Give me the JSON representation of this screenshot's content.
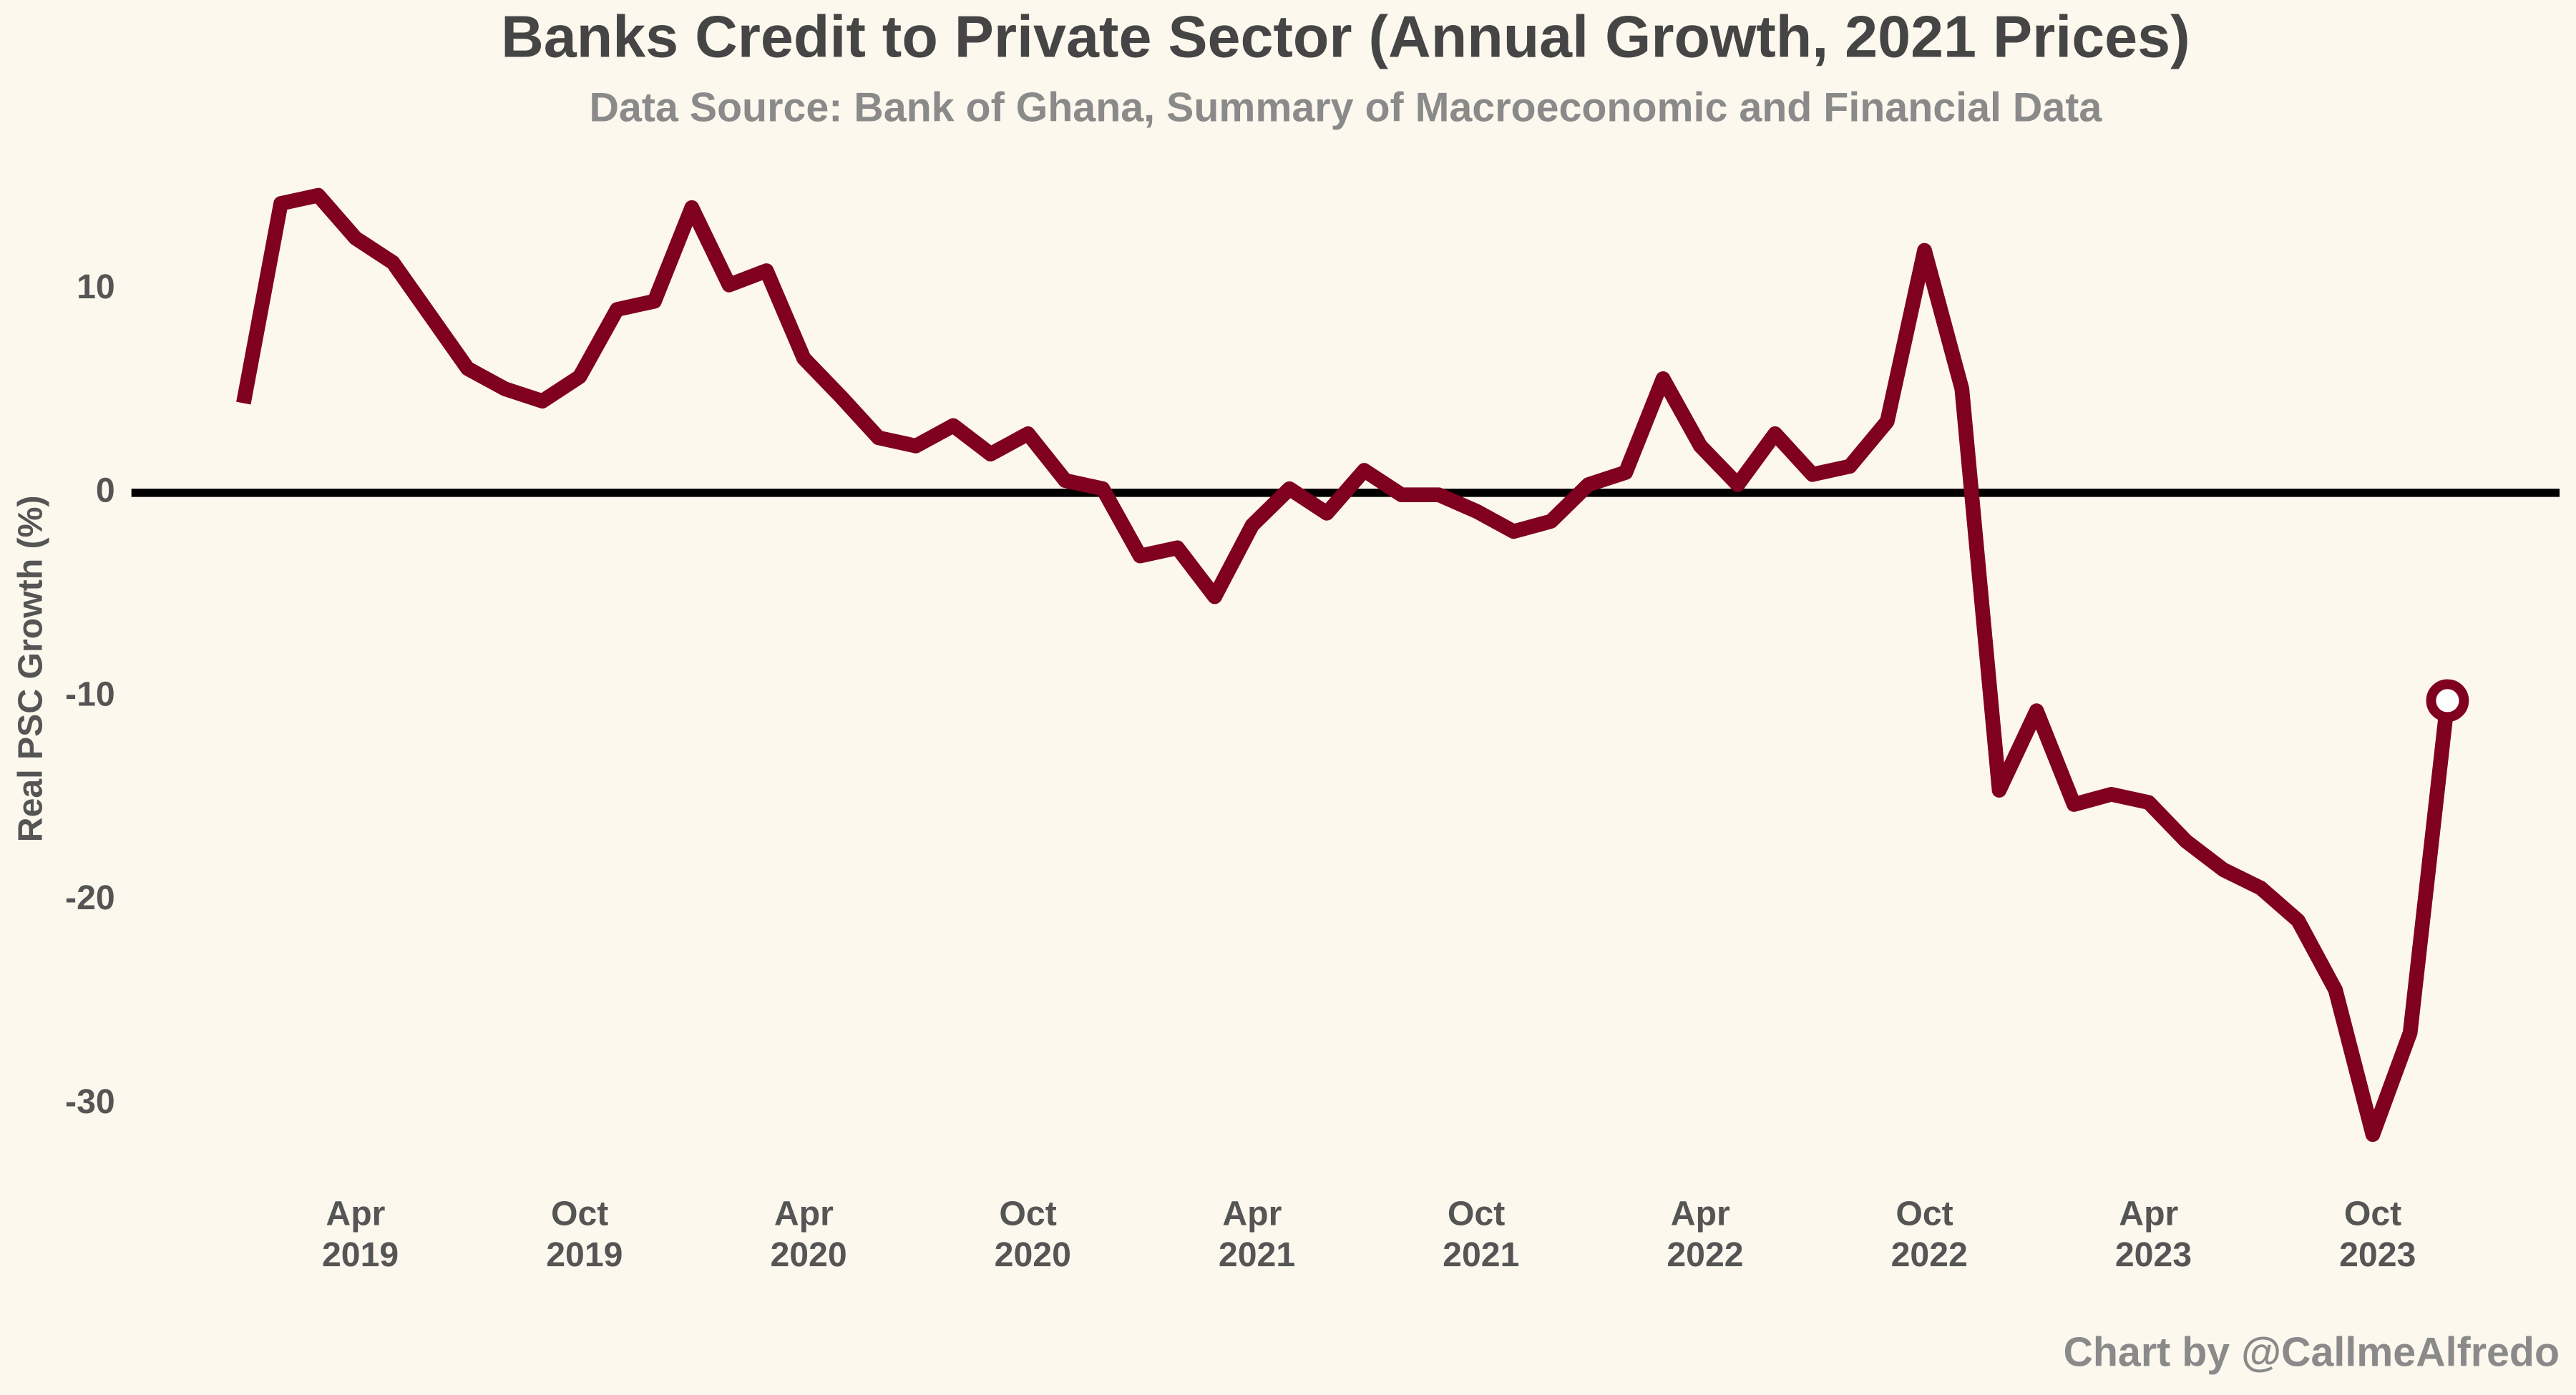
{
  "chart_data": {
    "type": "line",
    "title": "Banks Credit to Private Sector (Annual Growth, 2021 Prices)",
    "subtitle": "Data Source: Bank of Ghana, Summary of Macroeconomic and Financial Data",
    "y_label": "Real PSC Growth (%)",
    "credit": "Chart by @CallmeAlfredo",
    "x": [
      "2019-01",
      "2019-02",
      "2019-03",
      "2019-04",
      "2019-05",
      "2019-06",
      "2019-07",
      "2019-08",
      "2019-09",
      "2019-10",
      "2019-11",
      "2019-12",
      "2020-01",
      "2020-02",
      "2020-03",
      "2020-04",
      "2020-05",
      "2020-06",
      "2020-07",
      "2020-08",
      "2020-09",
      "2020-10",
      "2020-11",
      "2020-12",
      "2021-01",
      "2021-02",
      "2021-03",
      "2021-04",
      "2021-05",
      "2021-06",
      "2021-07",
      "2021-08",
      "2021-09",
      "2021-10",
      "2021-11",
      "2021-12",
      "2022-01",
      "2022-02",
      "2022-03",
      "2022-04",
      "2022-05",
      "2022-06",
      "2022-07",
      "2022-08",
      "2022-09",
      "2022-10",
      "2022-11",
      "2022-12",
      "2023-01",
      "2023-02",
      "2023-03",
      "2023-04",
      "2023-05",
      "2023-06",
      "2023-07",
      "2023-08",
      "2023-09",
      "2023-10",
      "2023-11",
      "2023-12"
    ],
    "series": [
      {
        "name": "Real PSC Growth",
        "color": "#800020",
        "values": [
          4.4,
          14.2,
          14.6,
          12.5,
          11.3,
          8.7,
          6.1,
          5.1,
          4.5,
          5.7,
          9.0,
          9.4,
          14.0,
          10.2,
          10.9,
          6.6,
          4.7,
          2.7,
          2.3,
          3.3,
          1.9,
          2.9,
          0.6,
          0.2,
          -3.1,
          -2.7,
          -5.1,
          -1.6,
          0.2,
          -1.0,
          1.1,
          -0.1,
          -0.1,
          -0.9,
          -1.9,
          -1.4,
          0.4,
          1.0,
          5.6,
          2.3,
          0.4,
          2.9,
          0.9,
          1.3,
          3.5,
          11.9,
          5.1,
          -14.6,
          -10.7,
          -15.3,
          -14.8,
          -15.2,
          -17.1,
          -18.5,
          -19.4,
          -21.0,
          -24.4,
          -31.5,
          -26.5,
          -10.2
        ]
      }
    ],
    "xlim": [
      "2018-10",
      "2024-03"
    ],
    "xticks": [
      {
        "value": "2019-04",
        "label": "Apr 2019"
      },
      {
        "value": "2019-10",
        "label": "Oct 2019"
      },
      {
        "value": "2020-04",
        "label": "Apr 2020"
      },
      {
        "value": "2020-10",
        "label": "Oct 2020"
      },
      {
        "value": "2021-04",
        "label": "Apr 2021"
      },
      {
        "value": "2021-10",
        "label": "Oct 2021"
      },
      {
        "value": "2022-04",
        "label": "Apr 2022"
      },
      {
        "value": "2022-10",
        "label": "Oct 2022"
      },
      {
        "value": "2023-04",
        "label": "Apr 2023"
      },
      {
        "value": "2023-10",
        "label": "Oct 2023"
      }
    ],
    "ylim": [
      -35,
      17
    ],
    "yticks": [
      10,
      0,
      -10,
      -20,
      -30
    ],
    "hline": 0,
    "end_marker": true,
    "grid": false
  }
}
